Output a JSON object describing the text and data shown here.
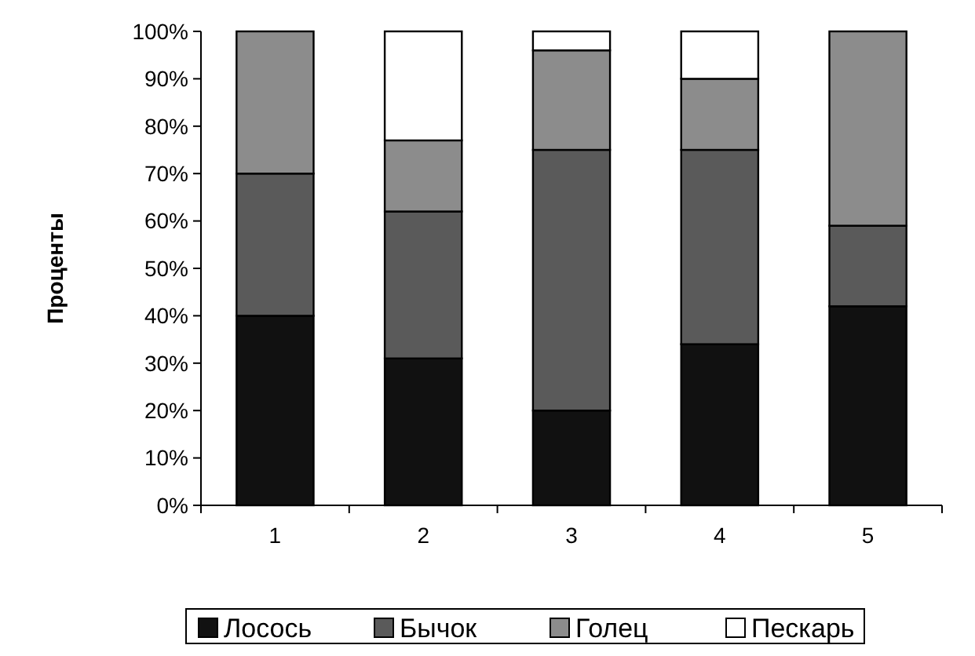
{
  "chart_data": {
    "type": "bar",
    "stacked": true,
    "ylabel": "Проценты",
    "categories": [
      "1",
      "2",
      "3",
      "4",
      "5"
    ],
    "series": [
      {
        "name": "Лосось",
        "color": "#111111",
        "values": [
          40,
          31,
          20,
          34,
          42
        ]
      },
      {
        "name": "Бычок",
        "color": "#5a5a5a",
        "values": [
          30,
          31,
          55,
          41,
          17
        ]
      },
      {
        "name": "Голец",
        "color": "#8c8c8c",
        "values": [
          30,
          15,
          21,
          15,
          41
        ]
      },
      {
        "name": "Пескарь",
        "color": "#ffffff",
        "values": [
          0,
          23,
          4,
          10,
          0
        ]
      }
    ],
    "ylim": [
      0,
      100
    ],
    "yticks": [
      {
        "value": 0,
        "label": "0%"
      },
      {
        "value": 10,
        "label": "10%"
      },
      {
        "value": 20,
        "label": "20%"
      },
      {
        "value": 30,
        "label": "30%"
      },
      {
        "value": 40,
        "label": "40%"
      },
      {
        "value": 50,
        "label": "50%"
      },
      {
        "value": 60,
        "label": "60%"
      },
      {
        "value": 70,
        "label": "70%"
      },
      {
        "value": 80,
        "label": "80%"
      },
      {
        "value": 90,
        "label": "90%"
      },
      {
        "value": 100,
        "label": "100%"
      }
    ],
    "legend": "bottom"
  }
}
